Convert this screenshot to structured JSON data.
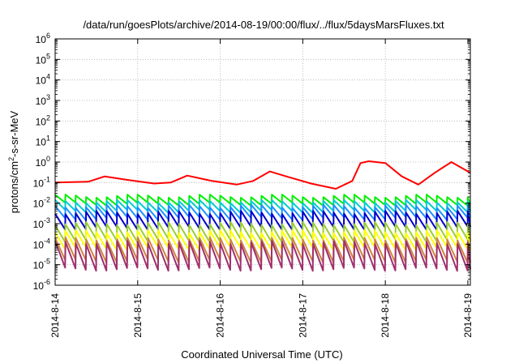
{
  "chart_data": {
    "type": "line",
    "title": "/data/run/goesPlots/archive/2014-08-19/00:00/flux/../flux/5daysMarsFluxes.txt",
    "xlabel": "Coordinated Universal Time (UTC)",
    "ylabel": "protons/cm²-s-sr-MeV",
    "y_scale": "log",
    "ylim": [
      1e-06,
      1000000.0
    ],
    "y_tick_exponents": [
      -6,
      -5,
      -4,
      -3,
      -2,
      -1,
      0,
      1,
      2,
      3,
      4,
      5,
      6
    ],
    "x_tick_labels": [
      "2014-8-14",
      "2014-8-15",
      "2014-8-16",
      "2014-8-17",
      "2014-8-18",
      "2014-8-19"
    ],
    "xlim_days": [
      0,
      5.03
    ],
    "grid": true,
    "legend": "none",
    "sawtooth_period_days": 0.125,
    "series": [
      {
        "color": "#ff0000",
        "x": [
          0,
          0.4,
          0.6,
          0.9,
          1.2,
          1.4,
          1.6,
          1.9,
          2.2,
          2.4,
          2.6,
          2.8,
          3.1,
          3.4,
          3.6,
          3.7,
          3.8,
          4.0,
          4.2,
          4.4,
          4.6,
          4.8,
          5.03
        ],
        "y": [
          0.1,
          0.11,
          0.2,
          0.13,
          0.09,
          0.1,
          0.22,
          0.12,
          0.08,
          0.12,
          0.35,
          0.2,
          0.09,
          0.05,
          0.12,
          0.9,
          1.1,
          0.9,
          0.2,
          0.08,
          0.3,
          1.0,
          0.3
        ]
      },
      {
        "color": "#00ee00",
        "peak": 0.022,
        "trough": 0.009
      },
      {
        "color": "#00cccc",
        "peak": 0.012,
        "trough": 0.004
      },
      {
        "color": "#1e90ff",
        "peak": 0.007,
        "trough": 0.0018
      },
      {
        "color": "#0000cd",
        "peak": 0.0035,
        "trough": 0.0006
      },
      {
        "color": "#9acd32",
        "peak": 0.001,
        "trough": 0.00015
      },
      {
        "color": "#ffff00",
        "peak": 0.0004,
        "trough": 6e-05
      },
      {
        "color": "#cd853f",
        "peak": 0.00018,
        "trough": 1.5e-05
      },
      {
        "color": "#a0306e",
        "peak": 0.00012,
        "trough": 6e-06
      }
    ]
  }
}
